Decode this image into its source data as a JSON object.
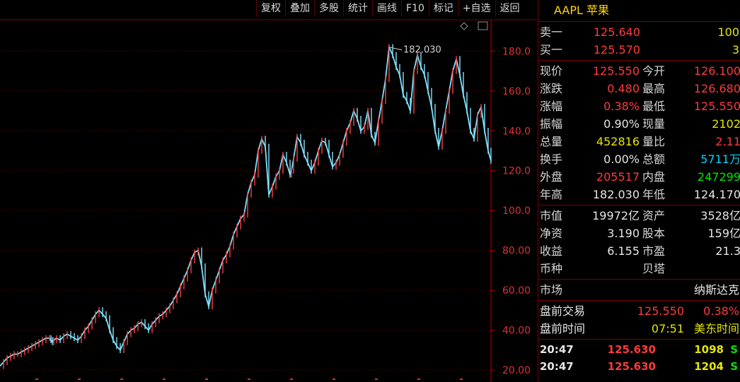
{
  "toolbar": [
    "复权",
    "叠加",
    "多股",
    "统计",
    "画线",
    "F10",
    "标记",
    "+自选",
    "返回"
  ],
  "stock": {
    "title": "AAPL 苹果"
  },
  "orderbook": [
    {
      "label": "卖一",
      "price": "125.640",
      "vol": "100"
    },
    {
      "label": "买一",
      "price": "125.570",
      "vol": "3"
    }
  ],
  "quote": [
    {
      "l1": "现价",
      "v1": "125.550",
      "c1": "red",
      "l2": "今开",
      "v2": "126.100",
      "c2": "red"
    },
    {
      "l1": "涨跌",
      "v1": "0.480",
      "c1": "red",
      "l2": "最高",
      "v2": "126.680",
      "c2": "red"
    },
    {
      "l1": "涨幅",
      "v1": "0.38%",
      "c1": "red",
      "l2": "最低",
      "v2": "125.550",
      "c2": "red"
    },
    {
      "l1": "振幅",
      "v1": "0.90%",
      "c1": "white",
      "l2": "现量",
      "v2": "2102",
      "c2": "yel"
    },
    {
      "l1": "总量",
      "v1": "452816",
      "c1": "yel",
      "l2": "量比",
      "v2": "2.11",
      "c2": "red"
    },
    {
      "l1": "换手",
      "v1": "0.00%",
      "c1": "white",
      "l2": "总额",
      "v2": "5711万",
      "c2": "cyan"
    },
    {
      "l1": "外盘",
      "v1": "205517",
      "c1": "red",
      "l2": "内盘",
      "v2": "247299",
      "c2": "green"
    },
    {
      "l1": "年高",
      "v1": "182.030",
      "c1": "white",
      "l2": "年低",
      "v2": "124.170",
      "c2": "white"
    }
  ],
  "fundamentals": [
    {
      "l1": "市值",
      "v1": "19972亿",
      "l2": "资产",
      "v2": "3528亿"
    },
    {
      "l1": "净资",
      "v1": "3.190",
      "l2": "股本",
      "v2": "159亿"
    },
    {
      "l1": "收益",
      "v1": "6.155",
      "l2": "市盈",
      "v2": "21.3"
    },
    {
      "l1": "币种",
      "v1": "",
      "l2": "贝塔",
      "v2": ""
    }
  ],
  "market": {
    "label": "市场",
    "value": "纳斯达克"
  },
  "premarket": {
    "trade_label": "盘前交易",
    "trade_price": "125.550",
    "trade_pct": "0.38%",
    "time_label": "盘前时间",
    "time": "07:51",
    "tz": "美东时间"
  },
  "ticks": [
    {
      "time": "20:47",
      "price": "125.630",
      "vol": "1098",
      "side": "S"
    },
    {
      "time": "20:47",
      "price": "125.630",
      "vol": "1204",
      "side": "S"
    }
  ],
  "chart_data": {
    "type": "line",
    "annotation": "182.030",
    "ylim": [
      14,
      195
    ],
    "yticks": [
      "180.0",
      "160.0",
      "140.0",
      "120.0",
      "100.0",
      "80.00",
      "60.00",
      "40.00",
      "20.00"
    ],
    "ytick_values": [
      180,
      160,
      140,
      120,
      100,
      80,
      60,
      40,
      20
    ],
    "x": [
      0,
      5,
      10,
      15,
      20,
      25,
      30,
      35,
      40,
      45,
      50,
      55,
      60,
      65,
      70,
      72,
      74,
      76,
      80,
      85,
      90,
      95,
      100,
      105,
      110,
      115,
      120,
      125,
      130,
      135,
      140,
      145,
      150,
      155,
      160,
      165,
      170,
      175,
      180,
      185,
      190,
      195,
      200,
      205,
      210,
      215,
      220,
      225,
      230,
      235,
      240,
      245,
      250,
      255,
      260,
      265,
      270,
      275,
      280,
      285,
      290,
      295,
      300,
      305,
      310,
      315,
      320,
      325,
      330,
      335,
      340,
      345,
      350,
      355,
      360,
      365,
      370,
      375,
      380,
      385,
      390,
      395,
      400,
      405,
      410,
      412,
      415,
      420,
      425,
      430,
      435,
      440,
      445,
      450,
      455,
      460,
      465,
      470,
      475,
      480,
      485,
      490,
      495,
      500,
      505,
      510,
      515,
      520,
      525,
      530,
      535,
      540,
      545,
      550,
      555,
      560,
      565,
      570,
      575,
      580,
      585,
      590,
      595,
      600,
      605,
      610,
      615,
      620,
      625,
      630,
      635,
      640,
      645,
      650,
      655,
      660,
      665,
      670,
      675,
      680,
      685,
      690,
      694
    ],
    "values": [
      22,
      24,
      26,
      27,
      28,
      28,
      29,
      30,
      31,
      32,
      33,
      34,
      35,
      36,
      36,
      35,
      34,
      35,
      36,
      35,
      37,
      38,
      37,
      36,
      35,
      37,
      40,
      42,
      45,
      48,
      50,
      48,
      46,
      40,
      35,
      32,
      30,
      34,
      38,
      40,
      41,
      43,
      44,
      42,
      40,
      43,
      45,
      47,
      48,
      50,
      52,
      55,
      58,
      62,
      66,
      70,
      75,
      79,
      80,
      72,
      58,
      52,
      60,
      65,
      70,
      75,
      78,
      82,
      88,
      92,
      96,
      98,
      108,
      114,
      118,
      130,
      136,
      132,
      108,
      112,
      117,
      120,
      128,
      124,
      118,
      120,
      126,
      137,
      134,
      128,
      124,
      120,
      124,
      130,
      135,
      134,
      128,
      122,
      124,
      128,
      134,
      140,
      144,
      150,
      146,
      140,
      142,
      150,
      138,
      134,
      145,
      155,
      166,
      182,
      178,
      172,
      168,
      158,
      155,
      150,
      170,
      178,
      172,
      168,
      160,
      152,
      140,
      132,
      140,
      150,
      160,
      170,
      176,
      168,
      158,
      150,
      140,
      136,
      148,
      152,
      140,
      130,
      125
    ]
  }
}
